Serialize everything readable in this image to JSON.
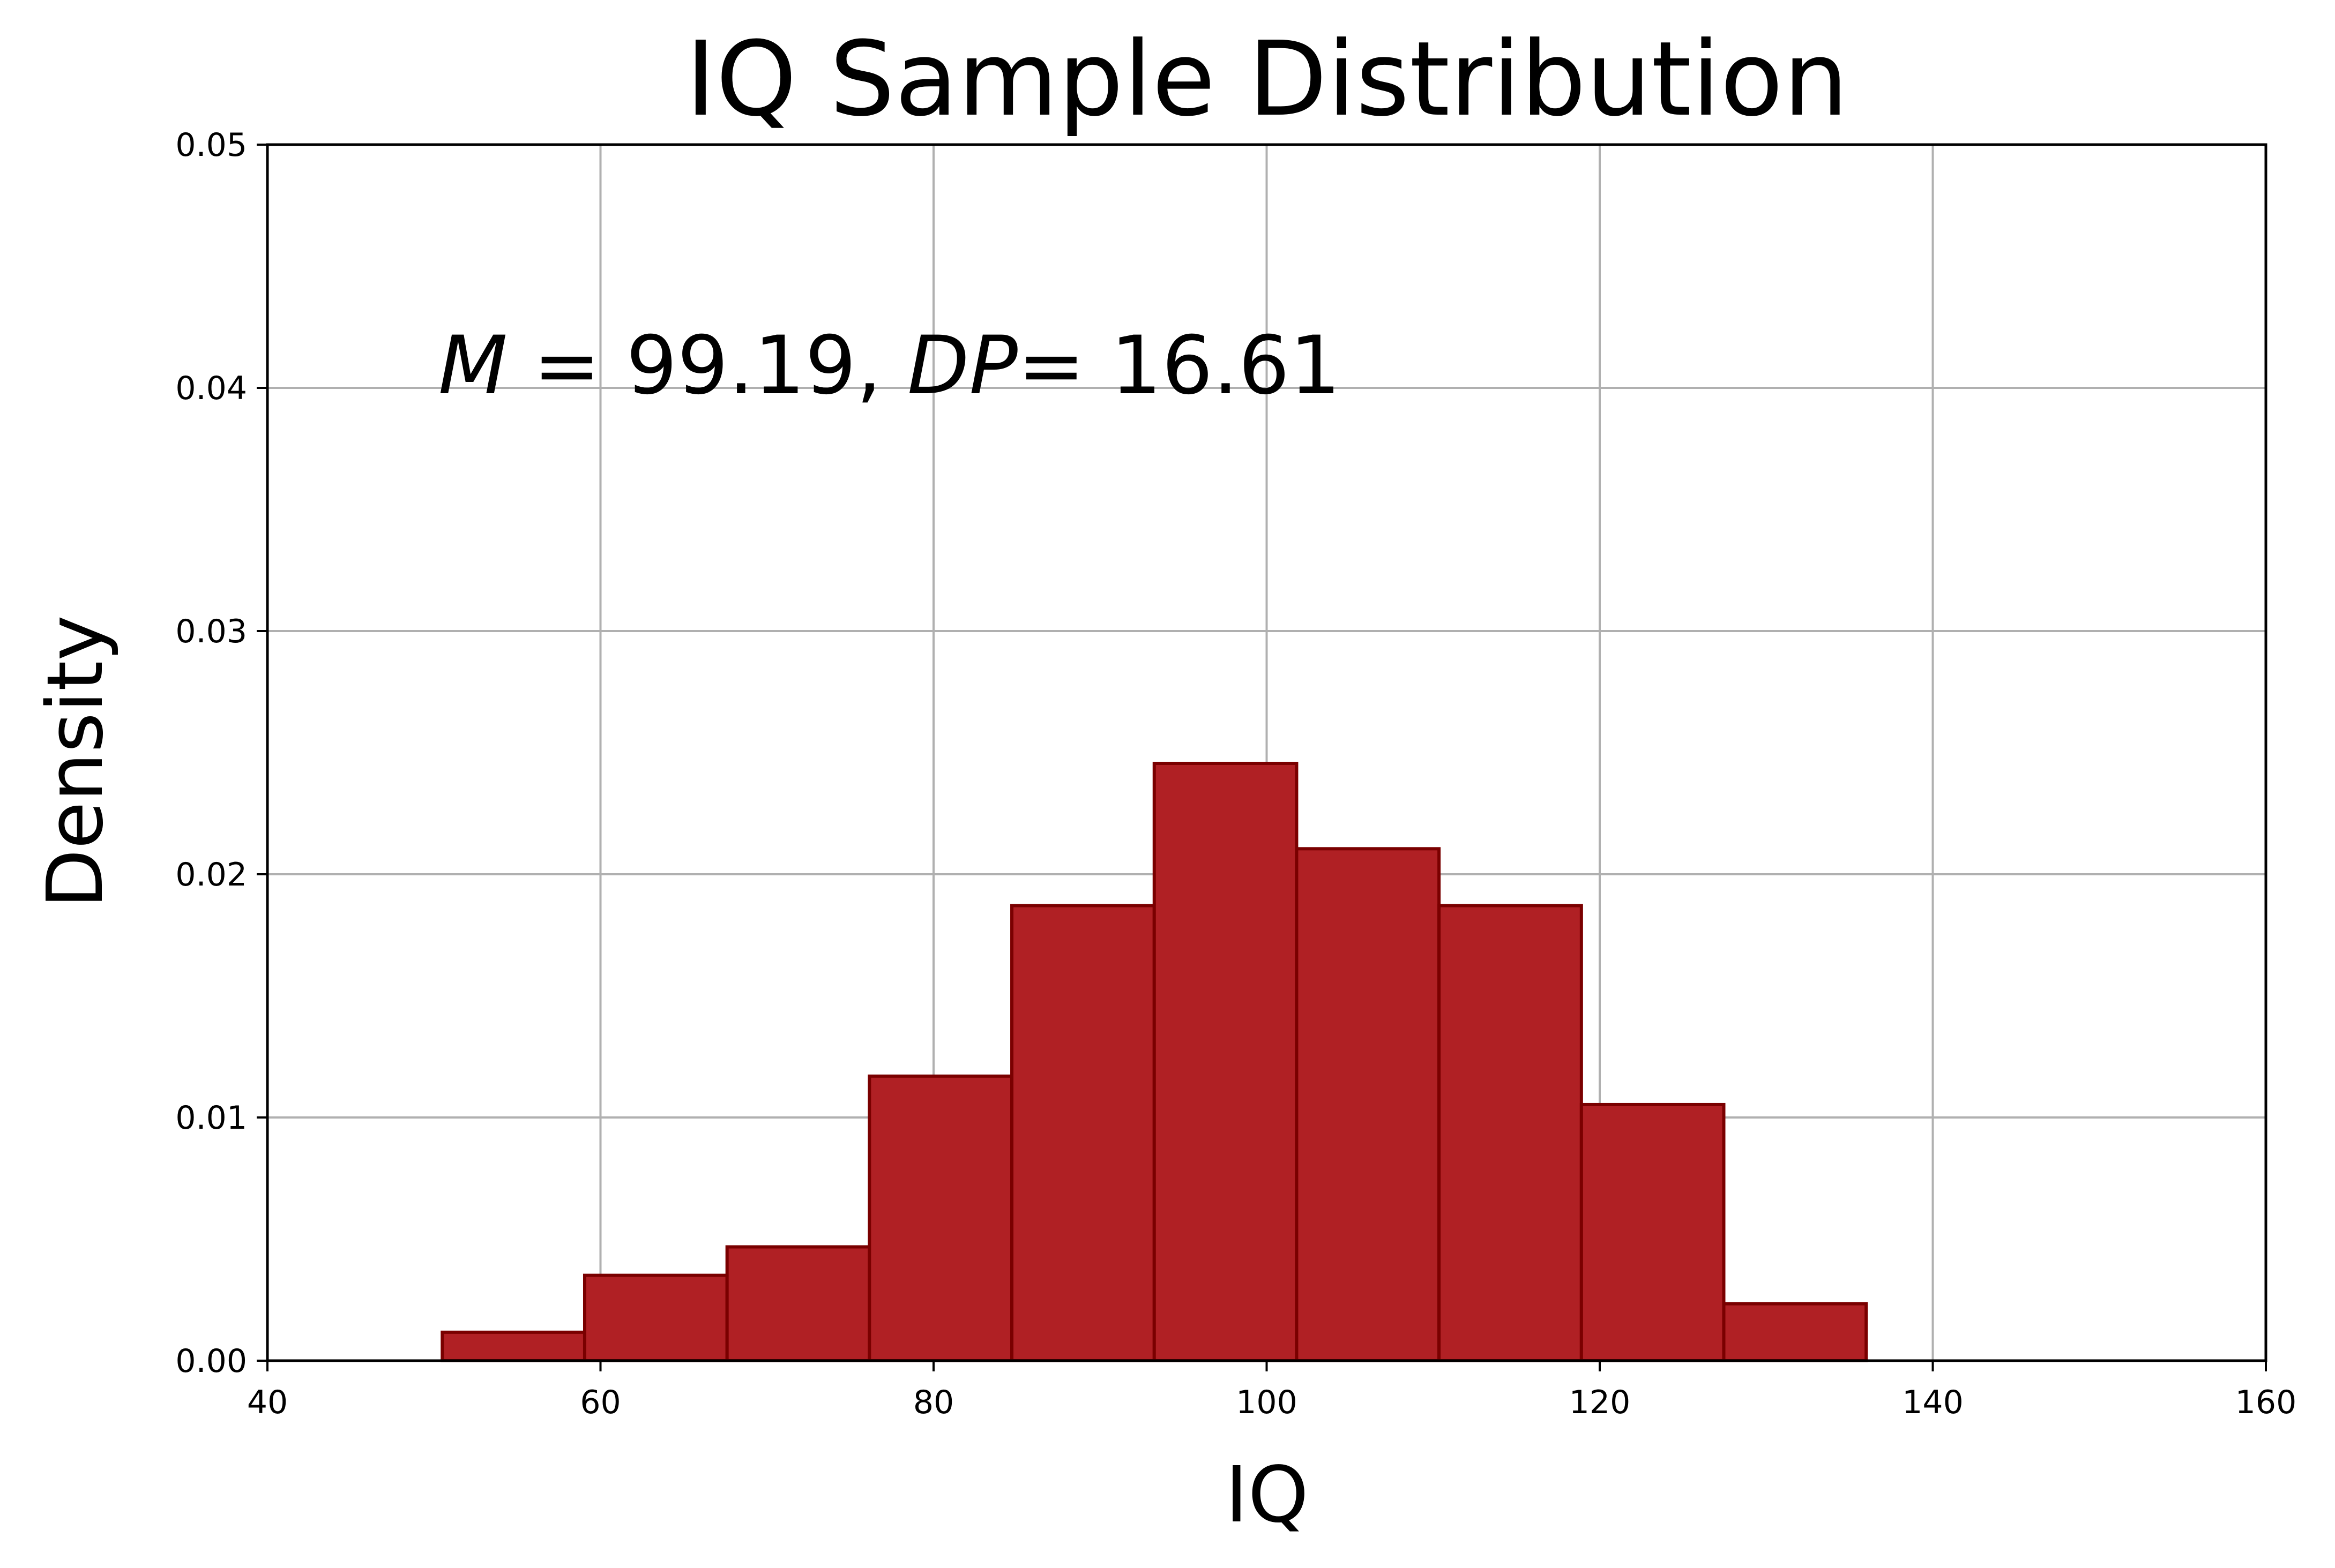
{
  "chart_data": {
    "type": "bar",
    "title": "IQ Sample Distribution",
    "xlabel": "IQ",
    "ylabel": "Density",
    "xlim": [
      40,
      160
    ],
    "ylim": [
      0,
      0.05
    ],
    "xticks": [
      "40",
      "60",
      "80",
      "100",
      "120",
      "140",
      "160"
    ],
    "yticks": [
      "0.00",
      "0.01",
      "0.02",
      "0.03",
      "0.04",
      "0.05"
    ],
    "grid": true,
    "bin_edges": [
      50.5,
      59.05,
      67.6,
      76.15,
      84.7,
      93.25,
      101.8,
      110.35,
      118.9,
      127.45,
      136.0
    ],
    "values": [
      0.00117,
      0.00351,
      0.00468,
      0.0117,
      0.01871,
      0.02456,
      0.02105,
      0.01871,
      0.01053,
      0.00234
    ],
    "colors": {
      "bar_fill": "#b02024",
      "bar_edge": "#7a0000",
      "grid": "#b0b0b0",
      "axis": "#000000"
    },
    "annotation": {
      "m_symbol": "M",
      "m_rest": " = 99.19, ",
      "dp_symbol": "DP",
      "dp_rest": "= 16.61",
      "x": 50,
      "y": 0.04
    }
  }
}
